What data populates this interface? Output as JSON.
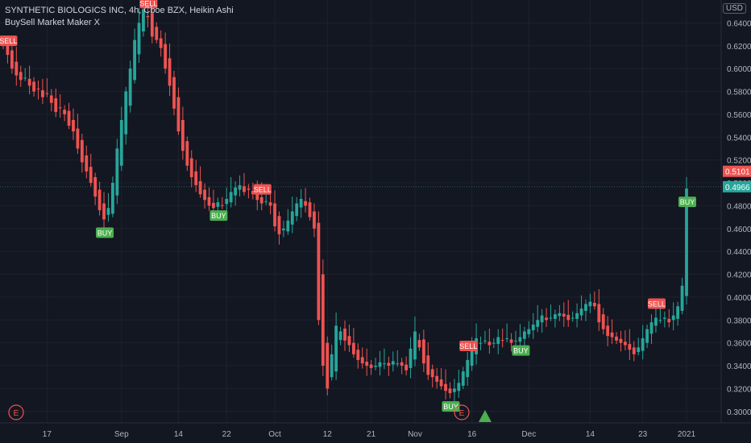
{
  "title": "SYNTHETIC BIOLOGICS INC, 4h, Cboe BZX, Heikin Ashi",
  "indicator": "BuySell Market Maker X",
  "currency": "USD",
  "colors": {
    "bg": "#131722",
    "up": "#26a69a",
    "down": "#ef5350",
    "grid": "#1e222d",
    "text": "#b2b5be"
  },
  "chart_data": {
    "type": "candlestick",
    "ylim": [
      0.29,
      0.66
    ],
    "y_ticks": [
      0.3,
      0.32,
      0.34,
      0.36,
      0.38,
      0.4,
      0.42,
      0.44,
      0.46,
      0.48,
      0.5,
      0.52,
      0.54,
      0.56,
      0.58,
      0.6,
      0.62,
      0.64
    ],
    "x_ticks": [
      "17",
      "Sep",
      "14",
      "22",
      "Oct",
      "12",
      "21",
      "Nov",
      "16",
      "Dec",
      "14",
      "23",
      "2021"
    ],
    "price_labels": [
      {
        "value": 0.5101,
        "label": "0.5101",
        "color": "#ef5350"
      },
      {
        "value": 0.4966,
        "label": "0.4966",
        "color": "#26a69a"
      }
    ],
    "series": [
      0.62,
      0.612,
      0.6,
      0.594,
      0.59,
      0.592,
      0.585,
      0.58,
      0.582,
      0.575,
      0.578,
      0.57,
      0.562,
      0.566,
      0.56,
      0.55,
      0.545,
      0.53,
      0.518,
      0.51,
      0.5,
      0.488,
      0.476,
      0.468,
      0.478,
      0.5,
      0.53,
      0.555,
      0.58,
      0.6,
      0.625,
      0.64,
      0.652,
      0.645,
      0.628,
      0.625,
      0.618,
      0.6,
      0.585,
      0.565,
      0.545,
      0.528,
      0.515,
      0.505,
      0.498,
      0.49,
      0.485,
      0.48,
      0.478,
      0.483,
      0.48,
      0.486,
      0.492,
      0.496,
      0.498,
      0.492,
      0.494,
      0.49,
      0.485,
      0.482,
      0.484,
      0.48,
      0.462,
      0.455,
      0.46,
      0.467,
      0.475,
      0.482,
      0.486,
      0.48,
      0.47,
      0.46,
      0.38,
      0.34,
      0.32,
      0.35,
      0.375,
      0.37,
      0.362,
      0.358,
      0.35,
      0.345,
      0.342,
      0.34,
      0.338,
      0.34,
      0.343,
      0.342,
      0.34,
      0.344,
      0.342,
      0.34,
      0.336,
      0.355,
      0.37,
      0.356,
      0.342,
      0.332,
      0.33,
      0.326,
      0.322,
      0.318,
      0.316,
      0.32,
      0.325,
      0.335,
      0.345,
      0.355,
      0.364,
      0.36,
      0.362,
      0.358,
      0.36,
      0.365,
      0.362,
      0.364,
      0.36,
      0.362,
      0.365,
      0.37,
      0.372,
      0.376,
      0.38,
      0.384,
      0.38,
      0.382,
      0.385,
      0.386,
      0.383,
      0.38,
      0.382,
      0.386,
      0.39,
      0.394,
      0.396,
      0.392,
      0.378,
      0.372,
      0.366,
      0.365,
      0.362,
      0.36,
      0.358,
      0.354,
      0.35,
      0.356,
      0.364,
      0.372,
      0.378,
      0.382,
      0.38,
      0.382,
      0.378,
      0.384,
      0.392,
      0.41,
      0.495
    ],
    "signals": [
      {
        "type": "SELL",
        "index": 1
      },
      {
        "type": "BUY",
        "index": 23
      },
      {
        "type": "SELL",
        "index": 33
      },
      {
        "type": "BUY",
        "index": 49
      },
      {
        "type": "SELL",
        "index": 59
      },
      {
        "type": "BUY",
        "index": 102
      },
      {
        "type": "SELL",
        "index": 106
      },
      {
        "type": "BUY",
        "index": 118
      },
      {
        "type": "SELL",
        "index": 149
      },
      {
        "type": "BUY",
        "index": 163
      }
    ],
    "event_markers": [
      {
        "label": "E",
        "index": 1
      },
      {
        "label": "E",
        "index": 118
      }
    ]
  }
}
